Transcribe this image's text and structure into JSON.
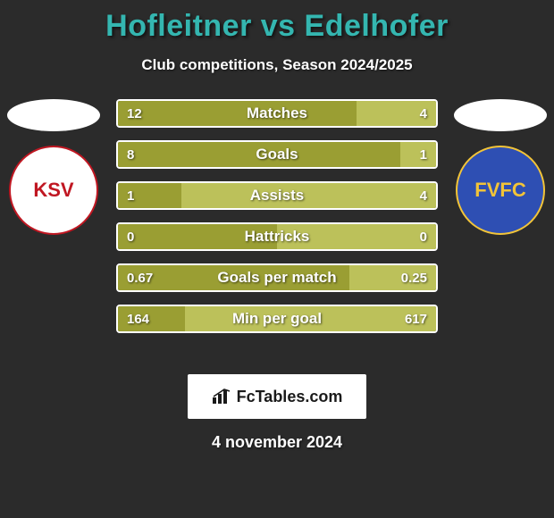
{
  "background_color": "#2b2b2b",
  "title": {
    "text": "Hofleitner vs Edelhofer",
    "color": "#34b6b0",
    "fontsize": 34
  },
  "subtitle": "Club competitions, Season 2024/2025",
  "players": {
    "left": {
      "name": "Hofleitner",
      "club_abbr": "KSV",
      "logo_bg": "#ffffff",
      "logo_fg": "#c01722"
    },
    "right": {
      "name": "Edelhofer",
      "club_abbr": "FVFC",
      "logo_bg": "#2e4fb3",
      "logo_fg": "#f2c438"
    }
  },
  "bars": {
    "left_color": "#9a9e33",
    "right_color": "#bcc15a",
    "border_color": "#ffffff",
    "rows": [
      {
        "label": "Matches",
        "left": "12",
        "right": "4",
        "left_pct": 75.0,
        "right_pct": 25.0
      },
      {
        "label": "Goals",
        "left": "8",
        "right": "1",
        "left_pct": 88.9,
        "right_pct": 11.1
      },
      {
        "label": "Assists",
        "left": "1",
        "right": "4",
        "left_pct": 20.0,
        "right_pct": 80.0
      },
      {
        "label": "Hattricks",
        "left": "0",
        "right": "0",
        "left_pct": 50.0,
        "right_pct": 50.0
      },
      {
        "label": "Goals per match",
        "left": "0.67",
        "right": "0.25",
        "left_pct": 72.8,
        "right_pct": 27.2
      },
      {
        "label": "Min per goal",
        "left": "164",
        "right": "617",
        "left_pct": 21.0,
        "right_pct": 79.0
      }
    ]
  },
  "site": {
    "label": "FcTables.com"
  },
  "date": "4 november 2024"
}
